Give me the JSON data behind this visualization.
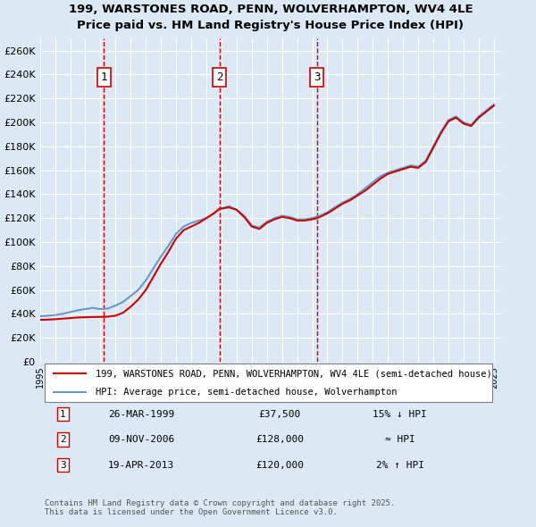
{
  "title_line1": "199, WARSTONES ROAD, PENN, WOLVERHAMPTON, WV4 4LE",
  "title_line2": "Price paid vs. HM Land Registry's House Price Index (HPI)",
  "background_color": "#dce9f5",
  "plot_bg_color": "#dce9f5",
  "grid_color": "#ffffff",
  "ylim": [
    0,
    270000
  ],
  "yticks": [
    0,
    20000,
    40000,
    60000,
    80000,
    100000,
    120000,
    140000,
    160000,
    180000,
    200000,
    220000,
    240000,
    260000
  ],
  "ylabel_format": "£{0}K",
  "legend_line1": "199, WARSTONES ROAD, PENN, WOLVERHAMPTON, WV4 4LE (semi-detached house)",
  "legend_line2": "HPI: Average price, semi-detached house, Wolverhampton",
  "sale_color": "#cc0000",
  "hpi_color": "#6699cc",
  "sale_points": [
    {
      "date_num": 1999.23,
      "price": 37500,
      "label": "1"
    },
    {
      "date_num": 2006.86,
      "price": 128000,
      "label": "2"
    },
    {
      "date_num": 2013.3,
      "price": 120000,
      "label": "3"
    }
  ],
  "annotation_table": [
    {
      "num": "1",
      "date": "26-MAR-1999",
      "price": "£37,500",
      "hpi_note": "15% ↓ HPI"
    },
    {
      "num": "2",
      "date": "09-NOV-2006",
      "price": "£128,000",
      "hpi_note": "≈ HPI"
    },
    {
      "num": "3",
      "date": "19-APR-2013",
      "price": "£120,000",
      "hpi_note": "2% ↑ HPI"
    }
  ],
  "footer_text": "Contains HM Land Registry data © Crown copyright and database right 2025.\nThis data is licensed under the Open Government Licence v3.0.",
  "hpi_data": {
    "years": [
      1995,
      1995.5,
      1996,
      1996.5,
      1997,
      1997.5,
      1998,
      1998.5,
      1999,
      1999.5,
      2000,
      2000.5,
      2001,
      2001.5,
      2002,
      2002.5,
      2003,
      2003.5,
      2004,
      2004.5,
      2005,
      2005.5,
      2006,
      2006.5,
      2007,
      2007.5,
      2008,
      2008.5,
      2009,
      2009.5,
      2010,
      2010.5,
      2011,
      2011.5,
      2012,
      2012.5,
      2013,
      2013.5,
      2014,
      2014.5,
      2015,
      2015.5,
      2016,
      2016.5,
      2017,
      2017.5,
      2018,
      2018.5,
      2019,
      2019.5,
      2020,
      2020.5,
      2021,
      2021.5,
      2022,
      2022.5,
      2023,
      2023.5,
      2024,
      2024.5,
      2025
    ],
    "values": [
      38000,
      38500,
      39000,
      40000,
      41500,
      43000,
      44000,
      45000,
      44000,
      44500,
      47000,
      50000,
      55000,
      60000,
      68000,
      78000,
      88000,
      97000,
      107000,
      113000,
      116000,
      118000,
      120000,
      124000,
      128000,
      130000,
      127000,
      122000,
      114000,
      112000,
      117000,
      120000,
      122000,
      121000,
      119000,
      119000,
      120000,
      122000,
      125000,
      129000,
      133000,
      136000,
      140000,
      145000,
      150000,
      155000,
      158000,
      160000,
      162000,
      164000,
      163000,
      168000,
      180000,
      192000,
      202000,
      205000,
      200000,
      198000,
      205000,
      210000,
      215000
    ]
  },
  "sale_line_data": {
    "years": [
      1999.23,
      2006.86,
      2013.3
    ],
    "values": [
      37500,
      128000,
      120000
    ]
  },
  "full_sale_line": {
    "years": [
      1995,
      1995.5,
      1996,
      1996.5,
      1997,
      1997.5,
      1998,
      1998.5,
      1999,
      1999.23,
      1999.5,
      2000,
      2000.5,
      2001,
      2001.5,
      2002,
      2002.5,
      2003,
      2003.5,
      2004,
      2004.5,
      2005,
      2005.5,
      2006,
      2006.5,
      2006.86,
      2007,
      2007.5,
      2008,
      2008.5,
      2009,
      2009.5,
      2010,
      2010.5,
      2011,
      2011.5,
      2012,
      2012.5,
      2013,
      2013.3,
      2013.5,
      2014,
      2014.5,
      2015,
      2015.5,
      2016,
      2016.5,
      2017,
      2017.5,
      2018,
      2018.5,
      2019,
      2019.5,
      2020,
      2020.5,
      2021,
      2021.5,
      2022,
      2022.5,
      2023,
      2023.5,
      2024,
      2024.5,
      2025
    ],
    "values": [
      35000,
      35200,
      35500,
      36000,
      36500,
      37000,
      37200,
      37400,
      37500,
      37500,
      37700,
      38500,
      41000,
      46000,
      52000,
      60000,
      71000,
      82000,
      92000,
      103000,
      110000,
      113000,
      116000,
      120000,
      124000,
      128000,
      128000,
      129000,
      127000,
      121000,
      113000,
      111000,
      116000,
      119000,
      121000,
      120000,
      118000,
      118000,
      119000,
      120000,
      121000,
      124000,
      128000,
      132000,
      135000,
      139000,
      143000,
      148000,
      153000,
      157000,
      159000,
      161000,
      163000,
      162000,
      167000,
      179000,
      191000,
      201000,
      204000,
      199000,
      197000,
      204000,
      209000,
      214000
    ]
  }
}
